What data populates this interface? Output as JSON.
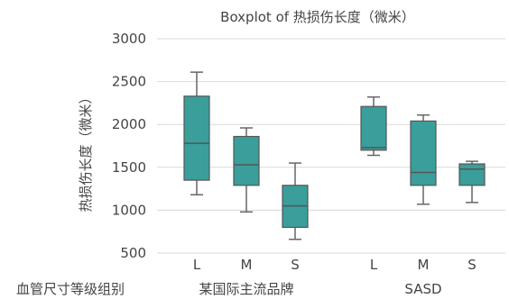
{
  "chart_data": {
    "type": "boxplot",
    "title": "Boxplot of 热损伤长度（微米）",
    "ylabel": "热损伤长度（微米）",
    "ylim": [
      500,
      3000
    ],
    "yticks": [
      500,
      1000,
      1500,
      2000,
      2500,
      3000
    ],
    "grid": true,
    "box_color": "#3a9e9b",
    "x_group_label": "血管尺寸等级组别",
    "groups": [
      {
        "name": "某国际主流品牌",
        "boxes": [
          {
            "category": "L",
            "min": 1180,
            "q1": 1350,
            "median": 1780,
            "q3": 2330,
            "max": 2610
          },
          {
            "category": "M",
            "min": 980,
            "q1": 1290,
            "median": 1530,
            "q3": 1860,
            "max": 1960
          },
          {
            "category": "S",
            "min": 660,
            "q1": 800,
            "median": 1050,
            "q3": 1290,
            "max": 1550
          }
        ]
      },
      {
        "name": "SASD",
        "boxes": [
          {
            "category": "L",
            "min": 1640,
            "q1": 1700,
            "median": 1730,
            "q3": 2210,
            "max": 2320
          },
          {
            "category": "M",
            "min": 1070,
            "q1": 1290,
            "median": 1440,
            "q3": 2040,
            "max": 2110
          },
          {
            "category": "S",
            "min": 1090,
            "q1": 1290,
            "median": 1480,
            "q3": 1540,
            "max": 1570
          }
        ]
      }
    ]
  }
}
